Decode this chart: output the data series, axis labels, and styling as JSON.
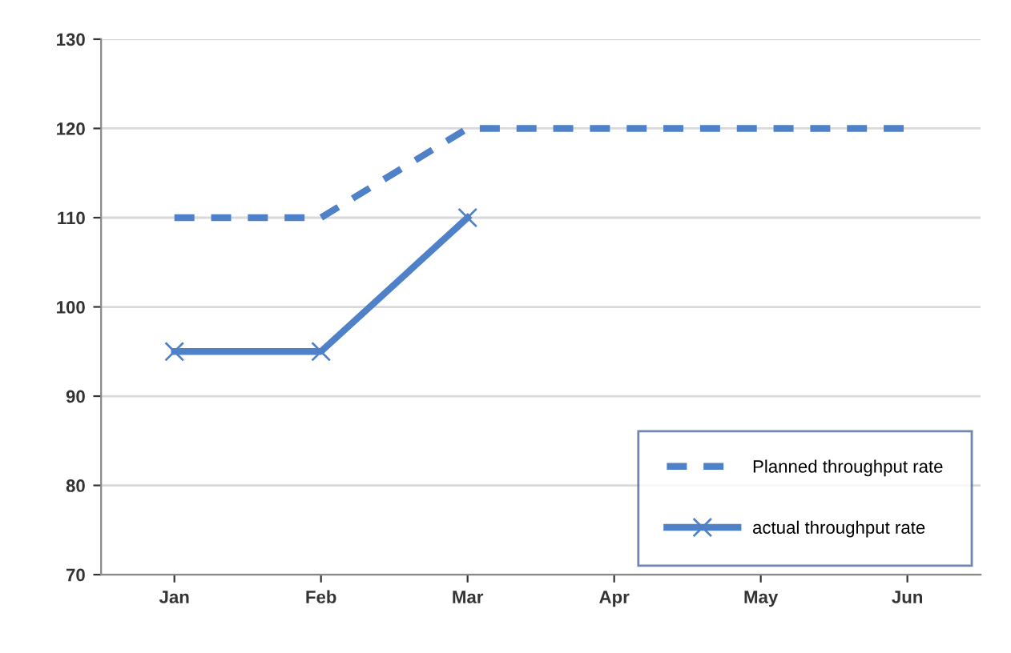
{
  "chart_data": {
    "type": "line",
    "categories": [
      "Jan",
      "Feb",
      "Mar",
      "Apr",
      "May",
      "Jun"
    ],
    "series": [
      {
        "name": "Planned throughput rate",
        "color": "#4f81c9",
        "values": [
          110,
          110,
          120,
          120,
          120,
          120
        ],
        "line_style": "dashed",
        "marker": "none"
      },
      {
        "name": "actual throughput rate",
        "color": "#4f81c9",
        "values": [
          95,
          95,
          110,
          null,
          null,
          null
        ],
        "line_style": "solid",
        "marker": "cross"
      }
    ],
    "ylim": [
      70,
      130
    ],
    "yticks": [
      70,
      80,
      90,
      100,
      110,
      120,
      130
    ],
    "grid": "y",
    "legend": "bottom right"
  }
}
